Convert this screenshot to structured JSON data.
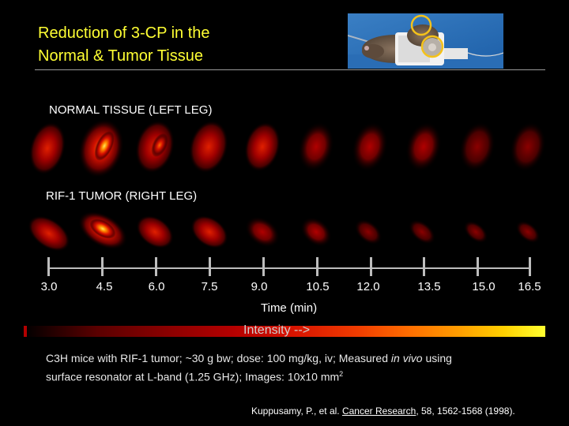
{
  "title": {
    "line1": "Reduction of 3-CP in the",
    "line2": "Normal & Tumor Tissue"
  },
  "rows": {
    "normal_label": "NORMAL TISSUE (LEFT LEG)",
    "tumor_label": "RIF-1 TUMOR (RIGHT LEG)"
  },
  "time_axis": {
    "labels": [
      "3.0",
      "4.5",
      "6.0",
      "7.5",
      "9.0",
      "10.5",
      "12.0",
      "13.5",
      "15.0",
      "16.5"
    ],
    "title": "Time (min)"
  },
  "intensity": {
    "label": "Intensity -->",
    "colors": [
      "#000000",
      "#8c0000",
      "#f03c00",
      "#ffa000",
      "#ffff30"
    ]
  },
  "caption": {
    "text1": "C3H mice with RIF-1 tumor; ~30 g bw; dose: 100 mg/kg, iv; Measured ",
    "italic": "in vivo",
    "text2": " using",
    "line2": "surface resonator at L-band (1.25 GHz); Images: 10x10 mm",
    "sup": "2"
  },
  "citation": {
    "authors": "Kuppusamy, P., et al. ",
    "journal": "Cancer Research",
    "rest": ", 58, 1562-1568 (1998)."
  },
  "colors": {
    "title": "#ffff33",
    "background": "#000000"
  }
}
